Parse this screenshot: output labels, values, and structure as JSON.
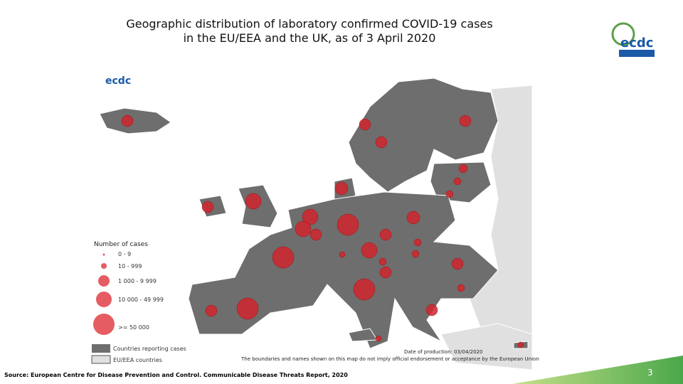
{
  "title_line1": "Geographic distribution of laboratory confirmed COVID-19 cases",
  "title_line2": "in the EU/EEA and the UK, as of 3 April 2020",
  "logo": "ecdc",
  "legend": {
    "title": "Number of cases",
    "items": [
      "0 - 9",
      "10 - 999",
      "1 000 - 9 999",
      "10 000 - 49 999",
      ">= 50 000"
    ],
    "areas": [
      "Countries reporting cases",
      "EU/EEA countries"
    ]
  },
  "production_date": "Date of production: 03/04/2020",
  "disclaimer": "The boundaries and names shown on this map do not imply official endorsement or acceptance by the European Union",
  "source": "Source: European Centre for Disease Prevention and Control. Communicable Disease Threats Report, 2020",
  "page_number": "3"
}
